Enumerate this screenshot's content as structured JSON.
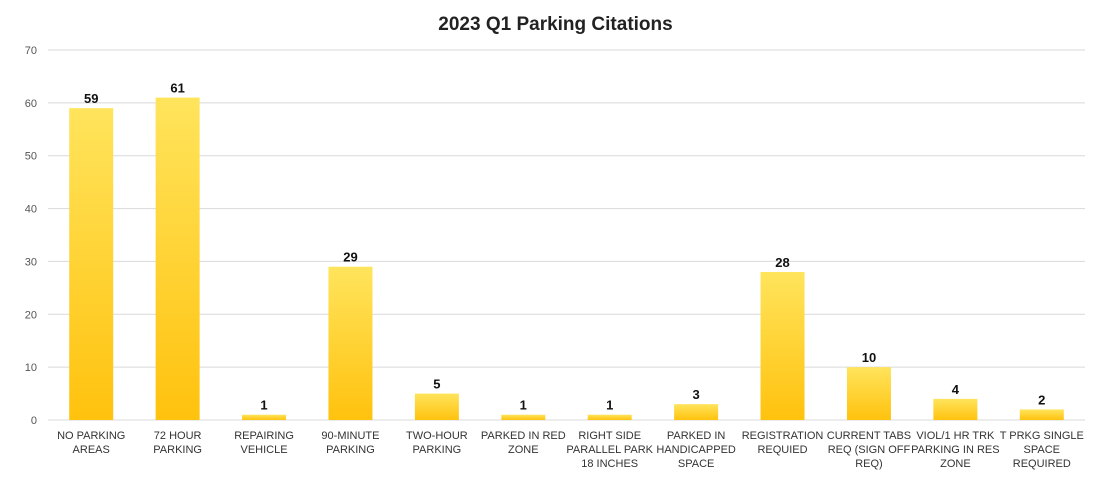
{
  "chart_data": {
    "type": "bar",
    "title": "2023 Q1 Parking Citations",
    "xlabel": "",
    "ylabel": "",
    "ylim": [
      0,
      70
    ],
    "yticks": [
      0,
      10,
      20,
      30,
      40,
      50,
      60,
      70
    ],
    "grid": true,
    "legend": "none",
    "bar_color": "#FFC20E",
    "bar_color_light": "#FFE45C",
    "categories": [
      [
        "NO PARKING",
        "AREAS"
      ],
      [
        "72 HOUR",
        "PARKING"
      ],
      [
        "REPAIRING",
        "VEHICLE"
      ],
      [
        "90-MINUTE",
        "PARKING"
      ],
      [
        "TWO-HOUR",
        "PARKING"
      ],
      [
        "PARKED IN RED",
        "ZONE"
      ],
      [
        "RIGHT SIDE",
        "PARALLEL PARK",
        "18 INCHES"
      ],
      [
        "PARKED IN",
        "HANDICAPPED",
        "SPACE"
      ],
      [
        "REGISTRATION",
        "REQUIED"
      ],
      [
        "CURRENT TABS",
        "REQ (SIGN OFF",
        "REQ)"
      ],
      [
        "VIOL/1 HR TRK",
        "PARKING IN RES",
        "ZONE"
      ],
      [
        "T PRKG SINGLE",
        "SPACE",
        "REQUIRED"
      ]
    ],
    "values": [
      59,
      61,
      1,
      29,
      5,
      1,
      1,
      3,
      28,
      10,
      4,
      2
    ]
  }
}
